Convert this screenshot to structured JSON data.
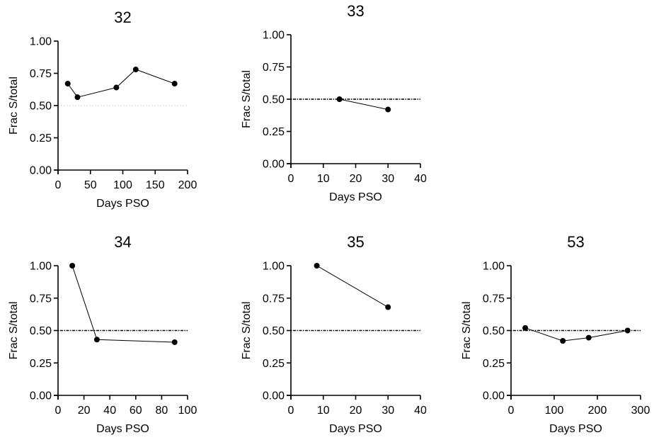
{
  "chart_data": [
    {
      "type": "line",
      "title": "32",
      "xlabel": "Days PSO",
      "ylabel": "Frac S/total",
      "xlim": [
        0,
        200
      ],
      "ylim": [
        0,
        1
      ],
      "xticks": [
        "0",
        "50",
        "100",
        "150",
        "200"
      ],
      "yticks": [
        "0.00",
        "0.25",
        "0.50",
        "0.75",
        "1.00"
      ],
      "reference_line": {
        "y": 0.5,
        "style": "dotted",
        "color": "#d0d0d0"
      },
      "series": [
        {
          "x": [
            15,
            30,
            90,
            120,
            180
          ],
          "y": [
            0.67,
            0.565,
            0.64,
            0.78,
            0.67
          ]
        }
      ]
    },
    {
      "type": "line",
      "title": "33",
      "xlabel": "Days PSO",
      "ylabel": "Frac S/total",
      "xlim": [
        0,
        40
      ],
      "ylim": [
        0,
        1
      ],
      "xticks": [
        "0",
        "10",
        "20",
        "30",
        "40"
      ],
      "yticks": [
        "0.00",
        "0.25",
        "0.50",
        "0.75",
        "1.00"
      ],
      "reference_line": {
        "y": 0.5,
        "style": "dotted",
        "color": "#000000"
      },
      "series": [
        {
          "x": [
            15,
            30
          ],
          "y": [
            0.5,
            0.42
          ]
        }
      ]
    },
    {
      "type": "line",
      "title": "34",
      "xlabel": "Days PSO",
      "ylabel": "Frac S/total",
      "xlim": [
        0,
        100
      ],
      "ylim": [
        0,
        1
      ],
      "xticks": [
        "0",
        "20",
        "40",
        "60",
        "80",
        "100"
      ],
      "yticks": [
        "0.00",
        "0.25",
        "0.50",
        "0.75",
        "1.00"
      ],
      "reference_line": {
        "y": 0.5,
        "style": "dotted",
        "color": "#000000"
      },
      "series": [
        {
          "x": [
            11,
            30,
            90
          ],
          "y": [
            1.0,
            0.43,
            0.41
          ]
        }
      ]
    },
    {
      "type": "line",
      "title": "35",
      "xlabel": "Days PSO",
      "ylabel": "Frac S/total",
      "xlim": [
        0,
        40
      ],
      "ylim": [
        0,
        1
      ],
      "xticks": [
        "0",
        "10",
        "20",
        "30",
        "40"
      ],
      "yticks": [
        "0.00",
        "0.25",
        "0.50",
        "0.75",
        "1.00"
      ],
      "reference_line": {
        "y": 0.5,
        "style": "dotted",
        "color": "#000000"
      },
      "series": [
        {
          "x": [
            8,
            30
          ],
          "y": [
            1.0,
            0.68
          ]
        }
      ]
    },
    {
      "type": "line",
      "title": "53",
      "xlabel": "Days PSO",
      "ylabel": "Frac S/total",
      "xlim": [
        0,
        300
      ],
      "ylim": [
        0,
        1
      ],
      "xticks": [
        "0",
        "100",
        "200",
        "300"
      ],
      "yticks": [
        "0.00",
        "0.25",
        "0.50",
        "0.75",
        "1.00"
      ],
      "reference_line": {
        "y": 0.5,
        "style": "dotted",
        "color": "#000000"
      },
      "series": [
        {
          "x": [
            33,
            120,
            180,
            270
          ],
          "y": [
            0.52,
            0.42,
            0.445,
            0.5
          ]
        }
      ]
    }
  ]
}
